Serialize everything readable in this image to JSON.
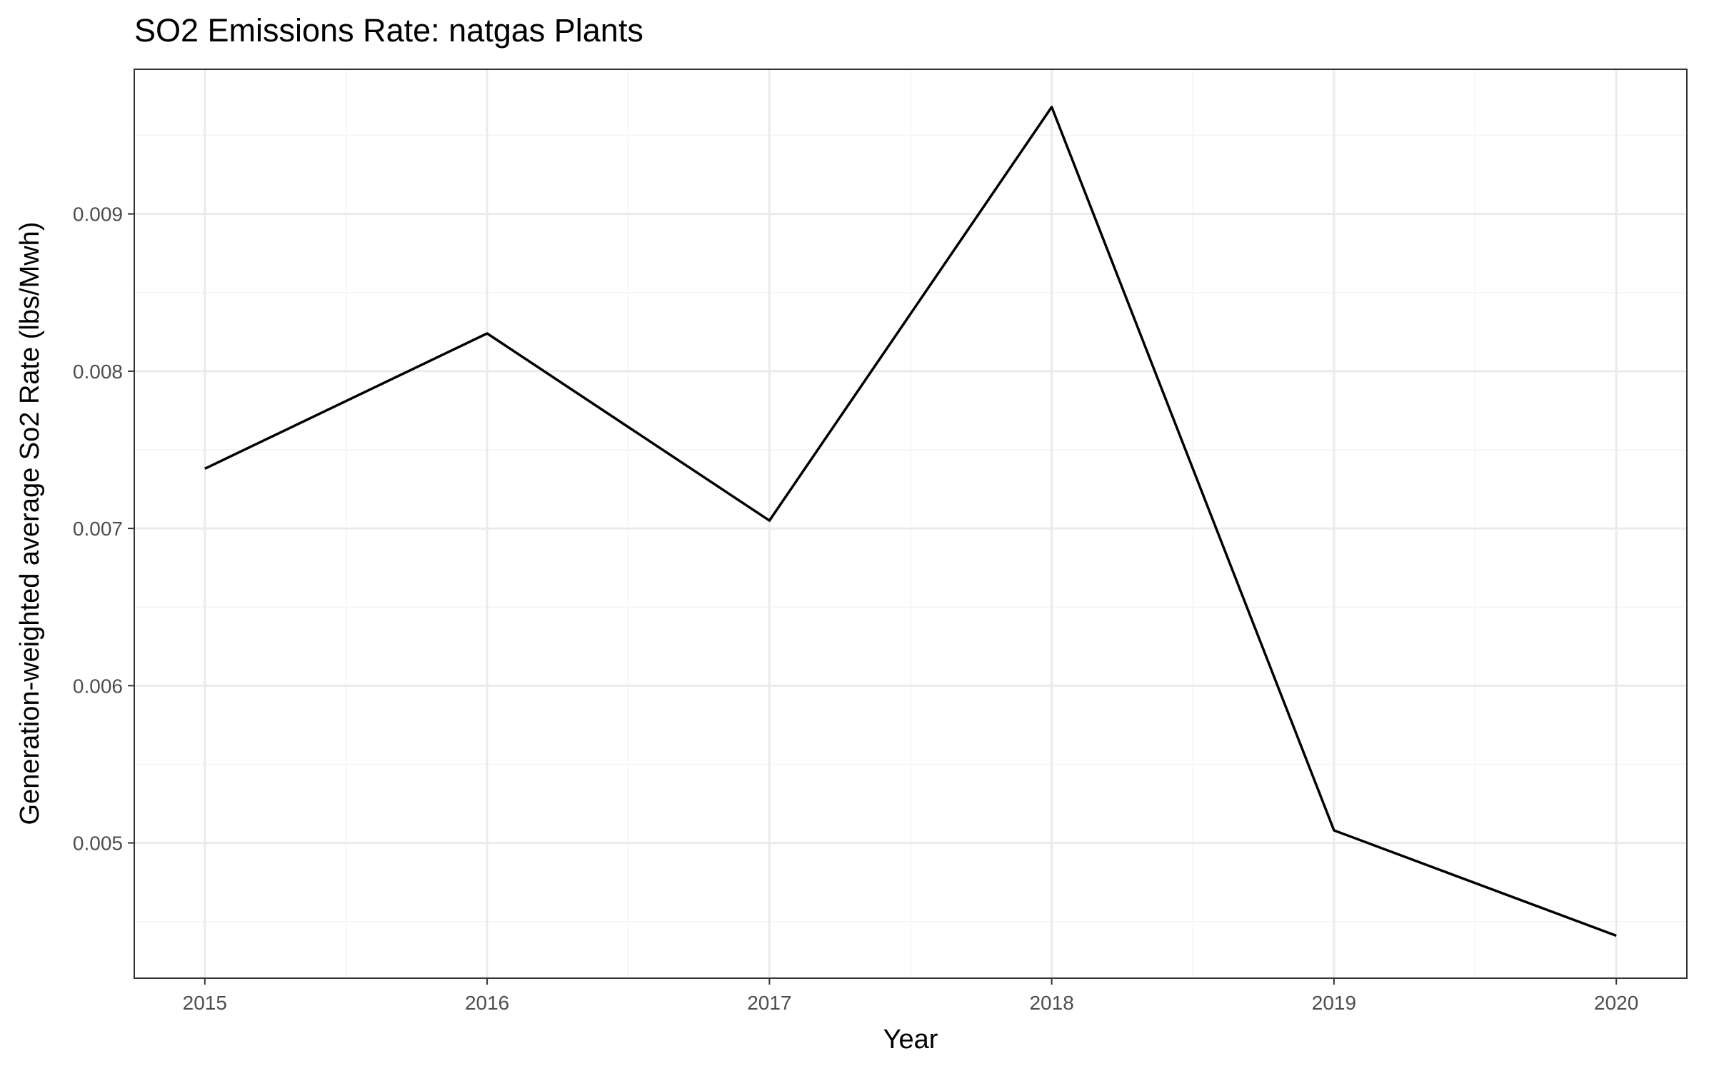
{
  "chart_data": {
    "type": "line",
    "title": "SO2 Emissions Rate: natgas Plants",
    "xlabel": "Year",
    "ylabel": "Generation-weighted average So2 Rate (lbs/Mwh)",
    "x": [
      2015,
      2016,
      2017,
      2018,
      2019,
      2020
    ],
    "x_tick_labels": [
      "2015",
      "2016",
      "2017",
      "2018",
      "2019",
      "2020"
    ],
    "y_tick_values": [
      0.005,
      0.006,
      0.007,
      0.008,
      0.009
    ],
    "y_tick_labels": [
      "0.005",
      "0.006",
      "0.007",
      "0.008",
      "0.009"
    ],
    "xlim": [
      2014.75,
      2020.25
    ],
    "ylim": [
      0.00414,
      0.00992
    ],
    "series": [
      {
        "values": [
          0.00738,
          0.00824,
          0.00705,
          0.00968,
          0.00508,
          0.00441
        ],
        "color": "#000000"
      }
    ],
    "grid": true,
    "legend": "none",
    "colors": {
      "panel_border": "#333333",
      "grid_major": "#ebebeb",
      "grid_minor": "#f4f4f4",
      "tick_label": "#4d4d4d"
    }
  }
}
